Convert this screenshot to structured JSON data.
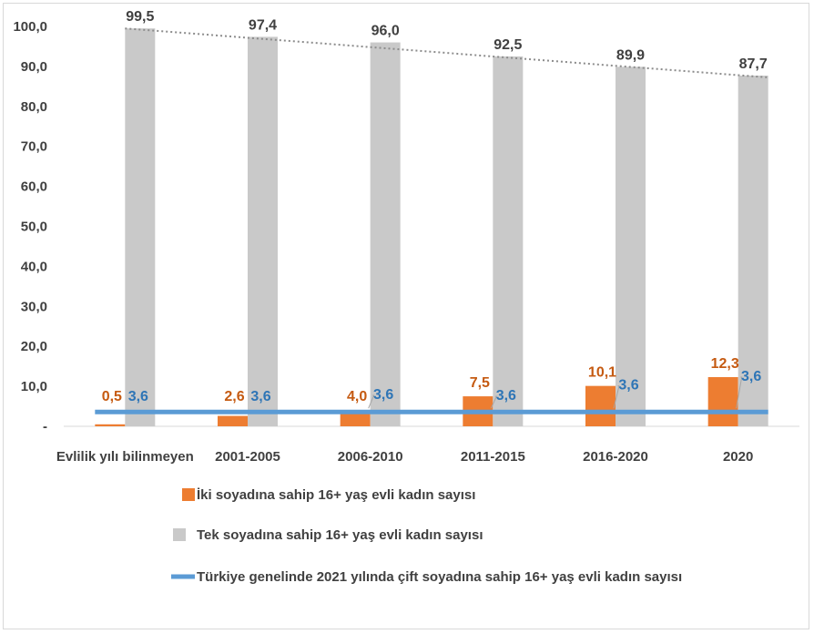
{
  "chart_data": {
    "type": "bar",
    "categories": [
      "Evlilik yılı bilinmeyen",
      "2001-2005",
      "2006-2010",
      "2011-2015",
      "2016-2020",
      "2020"
    ],
    "series": [
      {
        "name": "İki soyadına sahip 16+ yaş evli kadın sayısı",
        "kind": "bar",
        "color": "#ed7d31",
        "label_color": "#c55a11",
        "values": [
          0.5,
          2.6,
          4.0,
          7.5,
          10.1,
          12.3
        ],
        "labels": [
          "0,5",
          "2,6",
          "4,0",
          "7,5",
          "10,1",
          "12,3"
        ]
      },
      {
        "name": "Tek soyadına sahip 16+ yaş evli kadın sayısı",
        "kind": "bar",
        "color": "#c9c9c9",
        "label_color": "#404040",
        "values": [
          99.5,
          97.4,
          96.0,
          92.5,
          89.9,
          87.7
        ],
        "labels": [
          "99,5",
          "97,4",
          "96,0",
          "92,5",
          "89,9",
          "87,7"
        ]
      },
      {
        "name": "Türkiye genelinde 2021 yılında çift soyadına sahip 16+ yaş evli kadın sayısı",
        "kind": "line",
        "color": "#5b9bd5",
        "label_color": "#2e75b6",
        "values": [
          3.6,
          3.6,
          3.6,
          3.6,
          3.6,
          3.6
        ],
        "labels": [
          "3,6",
          "3,6",
          "3,6",
          "3,6",
          "3,6",
          "3,6"
        ]
      }
    ],
    "trendline": {
      "series": "Tek soyadına sahip 16+ yaş evli kadın sayısı",
      "style": "dotted",
      "color": "#8c8c8c"
    },
    "ylim": [
      0,
      100
    ],
    "yticks": [
      0,
      10,
      20,
      30,
      40,
      50,
      60,
      70,
      80,
      90,
      100
    ],
    "ytick_labels": [
      "-",
      "10,0",
      "20,0",
      "30,0",
      "40,0",
      "50,0",
      "60,0",
      "70,0",
      "80,0",
      "90,0",
      "100,0"
    ],
    "title": "",
    "xlabel": "",
    "ylabel": "",
    "grid": false,
    "legend_position": "bottom"
  }
}
